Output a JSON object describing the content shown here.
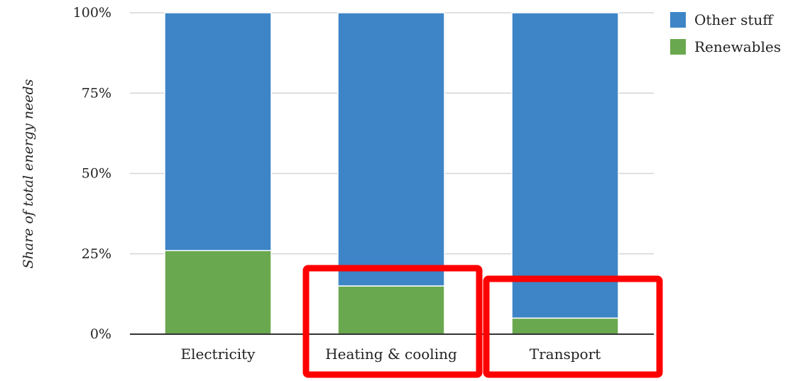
{
  "chart_data": {
    "type": "bar",
    "stacked": true,
    "categories": [
      "Electricity",
      "Heating & cooling",
      "Transport"
    ],
    "series": [
      {
        "name": "Renewables",
        "values": [
          26,
          15,
          5
        ],
        "color": "#6aa84f"
      },
      {
        "name": "Other stuff",
        "values": [
          74,
          85,
          95
        ],
        "color": "#3d85c6"
      }
    ],
    "title": "",
    "xlabel": "",
    "ylabel": "Share of total energy needs",
    "ylim": [
      0,
      100
    ],
    "yticks": [
      {
        "value": 0,
        "label": "0%"
      },
      {
        "value": 25,
        "label": "25%"
      },
      {
        "value": 50,
        "label": "50%"
      },
      {
        "value": 75,
        "label": "75%"
      },
      {
        "value": 100,
        "label": "100%"
      }
    ],
    "grid": true,
    "legend": {
      "placement": "top-right",
      "entries": [
        {
          "label": "Other stuff",
          "color": "#3d85c6"
        },
        {
          "label": "Renewables",
          "color": "#6aa84f"
        }
      ]
    },
    "highlights": {
      "color": "#ff0000",
      "categories": [
        "Heating & cooling",
        "Transport"
      ]
    }
  }
}
